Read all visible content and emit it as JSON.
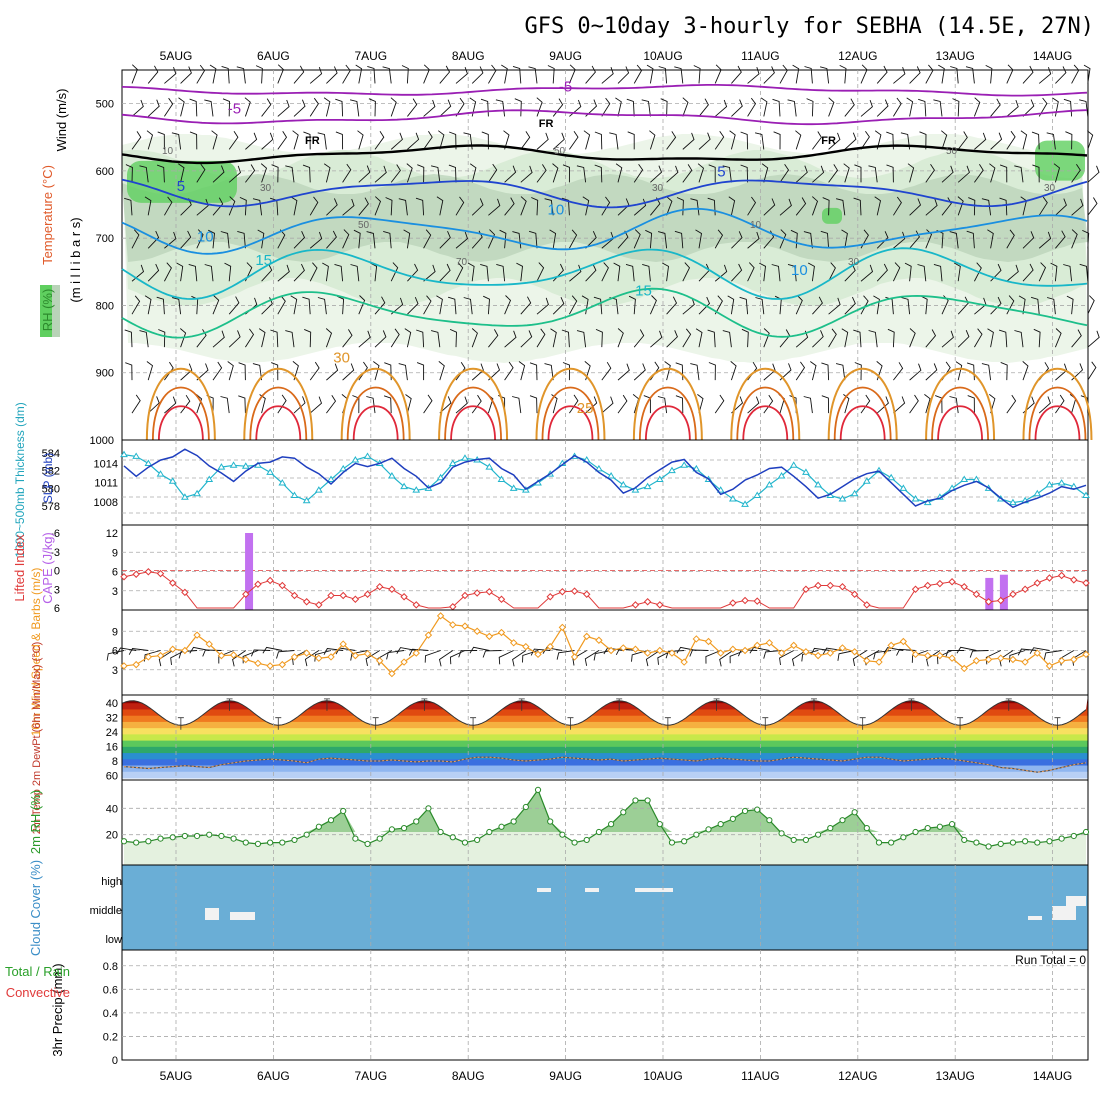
{
  "title": "GFS 0~10day 3-hourly for SEBHA (14.5E, 27N)",
  "colors": {
    "purple": "#9a1fb4",
    "black": "#000000",
    "blue_dark": "#1f44cf",
    "blue_mid": "#1a8fe0",
    "teal": "#18b7c8",
    "green_c": "#1dbf8a",
    "orange_c": "#e0952a",
    "dark_orange": "#d96a1a",
    "red_c": "#e0283a",
    "rh_green": "#58d158",
    "cloud_blue": "#6aaed6",
    "grid": "#aaaaaa",
    "slp_blue": "#1f3fbf",
    "thick_cyan": "#22b5cc",
    "li_red": "#e03a3a",
    "cape_purple": "#c271f0",
    "wind_orange": "#f09a20"
  },
  "chart_data": [
    {
      "type": "time-height",
      "panel": "upper_air",
      "ylabels": [
        "Wind (m/s)",
        "Temperature (°C)",
        "(m i l l i b a r s)",
        "RH (%)"
      ],
      "yticks": [
        500,
        600,
        700,
        800,
        900,
        1000
      ],
      "ylim": [
        450,
        1000
      ],
      "dates": [
        "5AUG",
        "6AUG",
        "7AUG",
        "8AUG",
        "9AUG",
        "10AUG",
        "11AUG",
        "12AUG",
        "13AUG",
        "14AUG"
      ],
      "contour_labels": [
        {
          "text": "-5",
          "day": 0.6,
          "p": 515,
          "color": "purple"
        },
        {
          "text": "-5",
          "day": 4.0,
          "p": 482,
          "color": "purple"
        },
        {
          "text": "FR",
          "day": 1.4,
          "p": 560,
          "color": "black"
        },
        {
          "text": "FR",
          "day": 3.8,
          "p": 535,
          "color": "black"
        },
        {
          "text": "FR",
          "day": 6.7,
          "p": 560,
          "color": "black"
        },
        {
          "text": "5",
          "day": 0.05,
          "p": 630,
          "color": "blue_dark"
        },
        {
          "text": "5",
          "day": 5.6,
          "p": 608,
          "color": "blue_dark"
        },
        {
          "text": "10",
          "day": 0.3,
          "p": 705,
          "color": "blue_mid"
        },
        {
          "text": "10",
          "day": 3.9,
          "p": 665,
          "color": "blue_mid"
        },
        {
          "text": "10",
          "day": 6.4,
          "p": 755,
          "color": "blue_mid"
        },
        {
          "text": "15",
          "day": 0.9,
          "p": 740,
          "color": "teal"
        },
        {
          "text": "15",
          "day": 4.8,
          "p": 785,
          "color": "teal"
        },
        {
          "text": "30",
          "day": 1.7,
          "p": 885,
          "color": "orange_c"
        },
        {
          "text": "25",
          "day": 4.2,
          "p": 960,
          "color": "orange_c"
        }
      ],
      "rh_labels": [
        "10",
        "30",
        "50",
        "70",
        "50",
        "30",
        "10",
        "30",
        "50",
        "30"
      ]
    },
    {
      "type": "line",
      "panel": "slp_thickness",
      "ylabel_left": "1000~500mb Thickness (dm)",
      "ylabel_right": "SLP (mb)",
      "yticks_thickness": [
        578,
        580,
        582,
        584
      ],
      "yticks_slp": [
        1008,
        1011,
        1014
      ],
      "series": [
        {
          "name": "SLP",
          "color": "slp_blue",
          "values": [
            1013.6,
            1012.0,
            1013.4,
            1014.5,
            1015.0,
            1016.2,
            1015.2,
            1013.6,
            1012.5,
            1011.2,
            1012.8,
            1014.0,
            1014.2,
            1015.0,
            1014.8,
            1013.4,
            1012.4,
            1010.8,
            1012.6,
            1014.0,
            1013.5,
            1014.0,
            1014.8,
            1013.2,
            1012.0,
            1010.2,
            1011.0,
            1013.4,
            1014.2,
            1014.6,
            1014.8,
            1013.2,
            1012.2,
            1010.0,
            1011.2,
            1012.4,
            1013.8,
            1015.2,
            1014.2,
            1012.6,
            1011.4,
            1009.4,
            1010.2,
            1011.8,
            1013.0,
            1014.2,
            1014.6,
            1012.6,
            1011.6,
            1009.2,
            1010.0,
            1011.4,
            1012.2,
            1013.2,
            1013.4,
            1012.0,
            1010.4,
            1008.6,
            1009.2,
            1010.4,
            1011.6,
            1012.4,
            1012.8,
            1011.0,
            1009.2,
            1007.4,
            1008.2,
            1008.6,
            1009.8,
            1010.6,
            1011.2,
            1010.2,
            1008.6,
            1007.2,
            1008.0,
            1008.6,
            1009.4,
            1010.4,
            1010.0,
            1010.6
          ]
        },
        {
          "name": "Thickness",
          "color": "thick_cyan",
          "values": [
            583.8,
            583.6,
            582.8,
            581.6,
            580.8,
            579.0,
            579.4,
            581.0,
            582.4,
            582.6,
            582.5,
            582.6,
            581.8,
            580.6,
            579.2,
            578.6,
            579.8,
            581.0,
            582.2,
            583.2,
            583.6,
            582.8,
            581.4,
            580.2,
            579.8,
            580.0,
            581.2,
            582.8,
            583.4,
            583.2,
            582.4,
            581.0,
            580.0,
            579.8,
            580.6,
            581.6,
            582.8,
            583.6,
            583.2,
            582.2,
            581.4,
            580.4,
            579.8,
            580.2,
            581.0,
            582.0,
            582.6,
            582.2,
            581.0,
            579.8,
            578.8,
            578.2,
            579.2,
            580.4,
            581.4,
            582.6,
            581.8,
            580.4,
            579.2,
            578.8,
            579.4,
            580.8,
            582.0,
            581.2,
            580.0,
            578.8,
            578.4,
            579.0,
            580.0,
            581.0,
            581.0,
            580.0,
            578.8,
            578.4,
            578.6,
            579.4,
            580.4,
            580.6,
            580.2,
            579.2
          ]
        }
      ]
    },
    {
      "type": "bar+line",
      "panel": "cape_li",
      "ylabel_left": "Lifted Index",
      "ylabel_right": "CAPE (J/kg)",
      "yticks_li": [
        "-6",
        "-3",
        "0",
        "3",
        "6"
      ],
      "yticks_cape": [
        3,
        6,
        9,
        12
      ],
      "cape_bars": [
        {
          "day": 0.75,
          "value": 12
        },
        {
          "day": 8.35,
          "value": 5
        },
        {
          "day": 8.5,
          "value": 5.5
        }
      ],
      "li_values": [
        1,
        0.6,
        0.2,
        0.5,
        2,
        3.5,
        6,
        6,
        6,
        6,
        3.8,
        2.2,
        1.6,
        2.4,
        4,
        5,
        5.5,
        4,
        4,
        4.6,
        3.8,
        2.6,
        3,
        4.2,
        5.5,
        6,
        6,
        5.8,
        4,
        3.6,
        3.4,
        4.6,
        6,
        6,
        6,
        4.2,
        3.4,
        3.3,
        3.8,
        6,
        6,
        6,
        5.5,
        5,
        5.5,
        6,
        6,
        6,
        6,
        6,
        5.2,
        4.8,
        4.9,
        6,
        6,
        6,
        3,
        2.4,
        2.4,
        2.6,
        3.8,
        5.5,
        6,
        6,
        6,
        3,
        2.4,
        2.1,
        1.8,
        2.6,
        3.8,
        5,
        4.8,
        3.8,
        3,
        2,
        1.2,
        0.8,
        1.5,
        2
      ]
    },
    {
      "type": "line",
      "panel": "wind10m",
      "ylabel": "10m Wind Speed & Barbs (m/s)",
      "yticks": [
        3,
        6,
        9
      ],
      "values": [
        3.6,
        3.8,
        5,
        5.2,
        6.2,
        6,
        8.4,
        7,
        5.2,
        5.3,
        4.6,
        4,
        3.6,
        3.8,
        5,
        5.6,
        4.8,
        5,
        7,
        5.2,
        5.5,
        4.4,
        2.4,
        4.2,
        5.6,
        8.4,
        11.4,
        10,
        9.8,
        9,
        8.2,
        8.8,
        7.2,
        6.6,
        5.4,
        6.6,
        9.6,
        5,
        8.2,
        7.6,
        6,
        6.4,
        6.2,
        5.6,
        6,
        5.6,
        4.2,
        7.8,
        7.4,
        5.6,
        6.2,
        6,
        6.8,
        7.2,
        5.6,
        6.8,
        5.8,
        5.2,
        5.6,
        6.4,
        5.8,
        4.4,
        4.2,
        6.8,
        7.4,
        5.4,
        5.2,
        5.2,
        4.8,
        3.2,
        4.4,
        4.6,
        4.8,
        4.6,
        4.2,
        5.6,
        3.6,
        4.4,
        4.6,
        5.4
      ]
    },
    {
      "type": "area+line",
      "panel": "temp_dew",
      "ylabel": "2m Temp 2m DewPt (6hr Min/Max) (°C)",
      "yticks": [
        40,
        32,
        24,
        16,
        8,
        60
      ],
      "temp_min": 27,
      "temp_max": 40,
      "dew_values": [
        5,
        4.5,
        4,
        4.5,
        5,
        5.5,
        5,
        4.5,
        6,
        7,
        8,
        8.5,
        9,
        8.5,
        8,
        7,
        9,
        9.5,
        9,
        8.5,
        8,
        8,
        8.5,
        8,
        7.5,
        8,
        8,
        7.5,
        9,
        10,
        10,
        9.5,
        8.5,
        8,
        8.5,
        9,
        10,
        9.5,
        9,
        8.5,
        9,
        8,
        8.5,
        9,
        9.5,
        9,
        8.5,
        8,
        9,
        9.5,
        9,
        8.5,
        8,
        8,
        9,
        10,
        9.5,
        9,
        8.5,
        8,
        9,
        10,
        10,
        9,
        8,
        8.5,
        9,
        9.5,
        9,
        8,
        7,
        6,
        4.5,
        4,
        3,
        2,
        3,
        4.5,
        6,
        7
      ]
    },
    {
      "type": "area+line",
      "panel": "rh2m",
      "ylabel": "2m RH (%)",
      "yticks": [
        20,
        40
      ],
      "values": [
        15,
        14,
        15,
        17,
        18,
        19,
        19,
        20,
        19,
        17,
        14,
        13,
        14,
        14,
        16,
        20,
        26,
        31,
        38,
        17,
        13,
        17,
        24,
        25,
        30,
        40,
        22,
        18,
        14,
        16,
        22,
        26,
        30,
        41,
        54,
        30,
        20,
        14,
        16,
        22,
        28,
        37,
        46,
        46,
        28,
        14,
        15,
        20,
        24,
        28,
        32,
        38,
        39,
        31,
        21,
        16,
        16,
        20,
        25,
        31,
        37,
        25,
        14,
        14,
        18,
        22,
        25,
        26,
        28,
        16,
        14,
        11,
        13,
        14,
        15,
        14,
        15,
        17,
        19,
        22
      ]
    },
    {
      "type": "area",
      "panel": "cloud",
      "ylabel": "Cloud Cover (%)",
      "levels": [
        "high",
        "middle",
        "low"
      ],
      "notes": "mostly clear (blue) with small white patches"
    },
    {
      "type": "bar",
      "panel": "precip",
      "ylabel": "3hr Precip (mm)",
      "ylabel2": "Total / Rain",
      "ylabel3": "Convective",
      "yticks": [
        "0",
        "0.2",
        "0.4",
        "0.6",
        "0.8"
      ],
      "run_total": "Run Total = 0",
      "values": []
    }
  ]
}
